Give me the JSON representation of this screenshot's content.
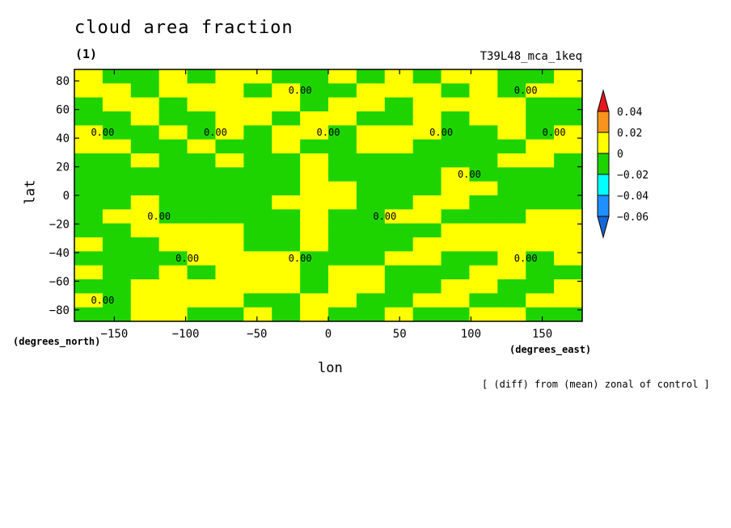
{
  "header": {
    "title": "cloud area fraction",
    "panel": "(1)",
    "run": "T39L48_mca_1keq"
  },
  "footer": {
    "note": "[ (diff) from (mean) zonal of control ]"
  },
  "chart_data": {
    "type": "heatmap",
    "title": "cloud area fraction",
    "xlabel": "lon",
    "ylabel": "lat",
    "x_units": "(degrees_east)",
    "y_units": "(degrees_north)",
    "xlim": [
      -178,
      178
    ],
    "ylim": [
      -88,
      88
    ],
    "x_ticks": [
      -150,
      -100,
      -50,
      0,
      50,
      100,
      150
    ],
    "y_ticks": [
      -80,
      -60,
      -40,
      -20,
      0,
      20,
      40,
      60,
      80
    ],
    "contour_label": "0.00",
    "colorbar": {
      "levels": [
        0.04,
        0.02,
        0,
        -0.02,
        -0.04,
        -0.06
      ],
      "colors": [
        "#e8171c",
        "#f7941d",
        "#ffff00",
        "#1ed400",
        "#00ffff",
        "#1e90ff",
        "#1566d6"
      ]
    },
    "field": {
      "lat": [
        85,
        75,
        65,
        55,
        45,
        35,
        25,
        15,
        5,
        -5,
        -15,
        -25,
        -35,
        -45,
        -55,
        -65,
        -75,
        -85
      ],
      "lon": [
        -170,
        -150,
        -130,
        -110,
        -90,
        -70,
        -50,
        -30,
        -10,
        10,
        30,
        50,
        70,
        90,
        110,
        130,
        150,
        170
      ],
      "values": [
        [
          0.005,
          -0.005,
          -0.005,
          0.005,
          -0.005,
          0.005,
          0.005,
          -0.005,
          -0.005,
          0.005,
          -0.005,
          0.005,
          -0.005,
          0.005,
          0.005,
          -0.005,
          -0.005,
          0.005
        ],
        [
          0.005,
          0.005,
          -0.005,
          0.005,
          0.005,
          0.005,
          -0.005,
          0.005,
          -0.005,
          -0.005,
          0.005,
          0.005,
          0.005,
          -0.005,
          0.005,
          -0.005,
          0.005,
          0.005
        ],
        [
          -0.005,
          0.005,
          0.005,
          -0.005,
          0.005,
          0.005,
          0.005,
          0.005,
          -0.005,
          0.005,
          0.005,
          -0.005,
          0.005,
          0.005,
          0.005,
          0.005,
          -0.005,
          -0.005
        ],
        [
          -0.005,
          -0.005,
          0.005,
          -0.005,
          -0.005,
          0.005,
          0.005,
          -0.005,
          0.005,
          0.005,
          -0.005,
          -0.005,
          0.005,
          -0.005,
          0.005,
          0.005,
          -0.005,
          -0.005
        ],
        [
          0.005,
          -0.005,
          -0.005,
          0.005,
          -0.005,
          0.005,
          -0.005,
          0.005,
          0.005,
          -0.005,
          0.005,
          0.005,
          0.005,
          -0.005,
          -0.005,
          0.005,
          -0.005,
          0.005
        ],
        [
          0.005,
          0.005,
          -0.005,
          -0.005,
          0.005,
          -0.005,
          -0.005,
          0.005,
          -0.005,
          -0.005,
          0.005,
          0.005,
          -0.005,
          -0.005,
          -0.005,
          -0.005,
          0.005,
          0.005
        ],
        [
          -0.005,
          -0.005,
          0.005,
          -0.005,
          -0.005,
          0.005,
          -0.005,
          -0.005,
          0.005,
          -0.005,
          -0.005,
          -0.005,
          -0.005,
          -0.005,
          -0.005,
          0.005,
          0.005,
          -0.005
        ],
        [
          -0.005,
          -0.005,
          -0.005,
          -0.005,
          -0.005,
          -0.005,
          -0.005,
          -0.005,
          0.005,
          -0.005,
          -0.005,
          -0.005,
          -0.005,
          0.005,
          -0.005,
          -0.005,
          -0.005,
          -0.005
        ],
        [
          -0.005,
          -0.005,
          -0.005,
          -0.005,
          -0.005,
          -0.005,
          -0.005,
          -0.005,
          0.005,
          0.005,
          -0.005,
          -0.005,
          -0.005,
          0.005,
          0.005,
          -0.005,
          -0.005,
          -0.005
        ],
        [
          -0.005,
          -0.005,
          0.005,
          -0.005,
          -0.005,
          -0.005,
          -0.005,
          0.005,
          0.005,
          0.005,
          -0.005,
          -0.005,
          0.005,
          0.005,
          -0.005,
          -0.005,
          -0.005,
          -0.005
        ],
        [
          -0.005,
          0.005,
          0.005,
          -0.005,
          -0.005,
          -0.005,
          -0.005,
          -0.005,
          0.005,
          -0.005,
          -0.005,
          0.005,
          0.005,
          -0.005,
          -0.005,
          -0.005,
          0.005,
          0.005
        ],
        [
          -0.005,
          -0.005,
          0.005,
          0.005,
          0.005,
          0.005,
          -0.005,
          -0.005,
          0.005,
          -0.005,
          -0.005,
          -0.005,
          -0.005,
          0.005,
          0.005,
          0.005,
          0.005,
          0.005
        ],
        [
          0.005,
          -0.005,
          -0.005,
          0.005,
          0.005,
          0.005,
          -0.005,
          -0.005,
          0.005,
          -0.005,
          -0.005,
          -0.005,
          0.005,
          0.005,
          0.005,
          0.005,
          0.005,
          0.005
        ],
        [
          -0.005,
          -0.005,
          -0.005,
          -0.005,
          0.005,
          0.005,
          0.005,
          0.005,
          -0.005,
          -0.005,
          -0.005,
          0.005,
          0.005,
          -0.005,
          -0.005,
          0.005,
          -0.005,
          0.005
        ],
        [
          0.005,
          -0.005,
          -0.005,
          0.005,
          -0.005,
          0.005,
          0.005,
          0.005,
          -0.005,
          0.005,
          0.005,
          -0.005,
          -0.005,
          -0.005,
          0.005,
          0.005,
          -0.005,
          -0.005
        ],
        [
          -0.005,
          -0.005,
          0.005,
          0.005,
          0.005,
          0.005,
          0.005,
          0.005,
          -0.005,
          0.005,
          0.005,
          -0.005,
          -0.005,
          0.005,
          0.005,
          -0.005,
          -0.005,
          0.005
        ],
        [
          0.005,
          -0.005,
          0.005,
          0.005,
          0.005,
          0.005,
          -0.005,
          -0.005,
          0.005,
          0.005,
          -0.005,
          -0.005,
          0.005,
          0.005,
          -0.005,
          -0.005,
          0.005,
          0.005
        ],
        [
          -0.005,
          -0.005,
          0.005,
          0.005,
          -0.005,
          -0.005,
          0.005,
          -0.005,
          0.005,
          -0.005,
          -0.005,
          0.005,
          -0.005,
          -0.005,
          0.005,
          0.005,
          -0.005,
          -0.005
        ]
      ]
    }
  }
}
